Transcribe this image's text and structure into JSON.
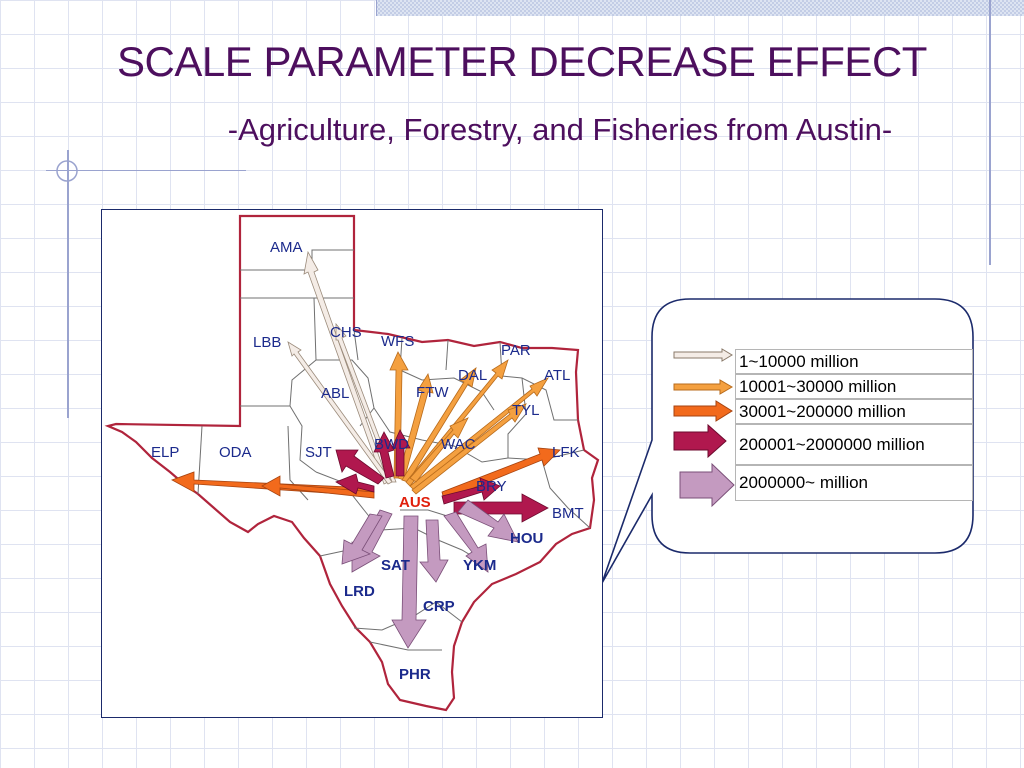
{
  "slide": {
    "title": "SCALE PARAMETER DECREASE EFFECT",
    "subtitle": "-Agriculture, Forestry, and Fisheries from Austin-"
  },
  "map": {
    "origin": "AUS",
    "border_color": "#b0243c",
    "labels": {
      "ama": "AMA",
      "lbb": "LBB",
      "chs": "CHS",
      "wfs": "WFS",
      "par": "PAR",
      "dal": "DAL",
      "atl": "ATL",
      "abl": "ABL",
      "ftw": "FTW",
      "tyl": "TYL",
      "elp": "ELP",
      "oda": "ODA",
      "sjt": "SJT",
      "bwd": "BWD",
      "wac": "WAC",
      "lfk": "LFK",
      "bry": "BRY",
      "aus": "AUS",
      "bmt": "BMT",
      "hou": "HOU",
      "sat": "SAT",
      "ykm": "YKM",
      "lrd": "LRD",
      "crp": "CRP",
      "phr": "PHR"
    }
  },
  "legend": {
    "items": [
      {
        "label": "1~10000 million",
        "color": "#f4ece6"
      },
      {
        "label": "10001~30000 million",
        "color": "#f4a040"
      },
      {
        "label": "30001~200000 million",
        "color": "#f26a1c"
      },
      {
        "label": "200001~2000000 million",
        "color": "#b0184e"
      },
      {
        "label": "2000000~ million",
        "color": "#c49ac0"
      }
    ]
  }
}
